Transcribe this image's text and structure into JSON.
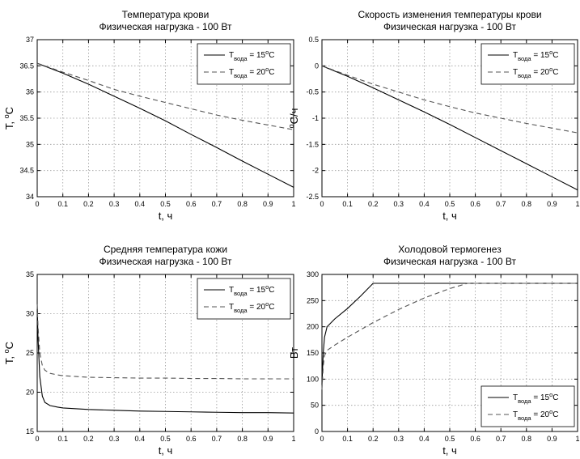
{
  "chart_data": [
    {
      "type": "line",
      "title": [
        "Температура крови",
        "Физическая нагрузка - 100 Вт"
      ],
      "xlabel": "t, ч",
      "ylabel": "T, ",
      "ylabel_sup": "o",
      "ylabel_tail": "C",
      "xlim": [
        0,
        1
      ],
      "ylim": [
        34,
        37
      ],
      "xticks": [
        "0",
        "0.1",
        "0.2",
        "0.3",
        "0.4",
        "0.5",
        "0.6",
        "0.7",
        "0.8",
        "0.9",
        "1"
      ],
      "yticks": [
        "34",
        "34.5",
        "35",
        "35.5",
        "36",
        "36.5",
        "37"
      ],
      "grid": true,
      "legend_position": "top-right",
      "series": [
        {
          "label_main": "T",
          "label_sub": "вода",
          "label_val": " = 15",
          "label_sup": "o",
          "label_unit": "C",
          "style": "solid",
          "x": [
            0,
            0.1,
            0.2,
            0.3,
            0.4,
            0.5,
            0.6,
            0.7,
            0.8,
            0.9,
            1.0
          ],
          "y": [
            36.55,
            36.36,
            36.15,
            35.92,
            35.69,
            35.45,
            35.19,
            34.94,
            34.68,
            34.43,
            34.18
          ]
        },
        {
          "label_main": "T",
          "label_sub": "вода",
          "label_val": " = 20",
          "label_sup": "o",
          "label_unit": "C",
          "style": "dashed",
          "x": [
            0,
            0.1,
            0.2,
            0.3,
            0.4,
            0.5,
            0.6,
            0.7,
            0.8,
            0.9,
            1.0
          ],
          "y": [
            36.55,
            36.38,
            36.22,
            36.05,
            35.92,
            35.8,
            35.68,
            35.56,
            35.46,
            35.37,
            35.28
          ]
        }
      ]
    },
    {
      "type": "line",
      "title": [
        "Скорость изменения температуры крови",
        "Физическая нагрузка - 100 Вт"
      ],
      "xlabel": "t, ч",
      "ylabel": "",
      "ylabel_sup": "o",
      "ylabel_tail": "C/ч",
      "xlim": [
        0,
        1
      ],
      "ylim": [
        -2.5,
        0.5
      ],
      "xticks": [
        "0",
        "0.1",
        "0.2",
        "0.3",
        "0.4",
        "0.5",
        "0.6",
        "0.7",
        "0.8",
        "0.9",
        "1"
      ],
      "yticks": [
        "-2.5",
        "-2",
        "-1.5",
        "-1",
        "-0.5",
        "0",
        "0.5"
      ],
      "grid": true,
      "legend_position": "top-right",
      "series": [
        {
          "label_main": "T",
          "label_sub": "вода",
          "label_val": " = 15",
          "label_sup": "o",
          "label_unit": "C",
          "style": "solid",
          "x": [
            0,
            0.1,
            0.2,
            0.3,
            0.4,
            0.5,
            0.6,
            0.7,
            0.8,
            0.9,
            1.0
          ],
          "y": [
            0,
            -0.2,
            -0.42,
            -0.65,
            -0.88,
            -1.12,
            -1.37,
            -1.62,
            -1.87,
            -2.12,
            -2.37
          ]
        },
        {
          "label_main": "T",
          "label_sub": "вода",
          "label_val": " = 20",
          "label_sup": "o",
          "label_unit": "C",
          "style": "dashed",
          "x": [
            0,
            0.1,
            0.2,
            0.3,
            0.4,
            0.5,
            0.6,
            0.7,
            0.8,
            0.9,
            1.0
          ],
          "y": [
            0,
            -0.18,
            -0.35,
            -0.5,
            -0.65,
            -0.78,
            -0.9,
            -1.0,
            -1.1,
            -1.19,
            -1.28
          ]
        }
      ]
    },
    {
      "type": "line",
      "title": [
        "Средняя температура кожи",
        "Физическая нагрузка - 100 Вт"
      ],
      "xlabel": "t, ч",
      "ylabel": "T, ",
      "ylabel_sup": "o",
      "ylabel_tail": "C",
      "xlim": [
        0,
        1
      ],
      "ylim": [
        15,
        35
      ],
      "xticks": [
        "0",
        "0.1",
        "0.2",
        "0.3",
        "0.4",
        "0.5",
        "0.6",
        "0.7",
        "0.8",
        "0.9",
        "1"
      ],
      "yticks": [
        "15",
        "20",
        "25",
        "30",
        "35"
      ],
      "grid": true,
      "legend_position": "top-right",
      "series": [
        {
          "label_main": "T",
          "label_sub": "вода",
          "label_val": " = 15",
          "label_sup": "o",
          "label_unit": "C",
          "style": "solid",
          "x": [
            0,
            0.003,
            0.01,
            0.02,
            0.03,
            0.05,
            0.08,
            0.1,
            0.2,
            0.3,
            0.4,
            0.5,
            0.6,
            0.7,
            0.8,
            0.9,
            1.0
          ],
          "y": [
            31.2,
            27.0,
            22.0,
            19.5,
            18.7,
            18.3,
            18.1,
            18.0,
            17.8,
            17.7,
            17.6,
            17.55,
            17.5,
            17.45,
            17.4,
            17.4,
            17.35
          ]
        },
        {
          "label_main": "T",
          "label_sub": "вода",
          "label_val": " = 20",
          "label_sup": "o",
          "label_unit": "C",
          "style": "dashed",
          "x": [
            0,
            0.003,
            0.01,
            0.02,
            0.03,
            0.05,
            0.08,
            0.1,
            0.2,
            0.3,
            0.4,
            0.5,
            0.6,
            0.7,
            0.8,
            0.9,
            1.0
          ],
          "y": [
            31.2,
            28.5,
            25.0,
            23.4,
            22.8,
            22.4,
            22.2,
            22.1,
            21.9,
            21.85,
            21.8,
            21.8,
            21.75,
            21.75,
            21.7,
            21.7,
            21.7
          ]
        }
      ]
    },
    {
      "type": "line",
      "title": [
        "Холодовой термогенез",
        "Физическая нагрузка - 100 Вт"
      ],
      "xlabel": "t, ч",
      "ylabel": "Вт",
      "ylabel_sup": "",
      "ylabel_tail": "",
      "xlim": [
        0,
        1
      ],
      "ylim": [
        0,
        300
      ],
      "xticks": [
        "0",
        "0.1",
        "0.2",
        "0.3",
        "0.4",
        "0.5",
        "0.6",
        "0.7",
        "0.8",
        "0.9",
        "1"
      ],
      "yticks": [
        "0",
        "50",
        "100",
        "150",
        "200",
        "250",
        "300"
      ],
      "grid": true,
      "legend_position": "bottom-right",
      "series": [
        {
          "label_main": "T",
          "label_sub": "вода",
          "label_val": " = 15",
          "label_sup": "o",
          "label_unit": "C",
          "style": "solid",
          "x": [
            0,
            0.005,
            0.01,
            0.02,
            0.05,
            0.1,
            0.15,
            0.2,
            0.3,
            0.4,
            0.5,
            0.6,
            0.7,
            0.8,
            0.9,
            1.0
          ],
          "y": [
            90,
            150,
            180,
            200,
            215,
            235,
            258,
            283,
            283,
            283,
            283,
            283,
            283,
            283,
            283,
            283
          ]
        },
        {
          "label_main": "T",
          "label_sub": "вода",
          "label_val": " = 20",
          "label_sup": "o",
          "label_unit": "C",
          "style": "dashed",
          "x": [
            0,
            0.005,
            0.01,
            0.02,
            0.05,
            0.1,
            0.2,
            0.3,
            0.4,
            0.5,
            0.57,
            0.6,
            0.7,
            0.8,
            0.9,
            1.0
          ],
          "y": [
            80,
            125,
            145,
            155,
            165,
            180,
            208,
            233,
            255,
            273,
            283,
            283,
            283,
            283,
            283,
            283
          ]
        }
      ]
    }
  ]
}
